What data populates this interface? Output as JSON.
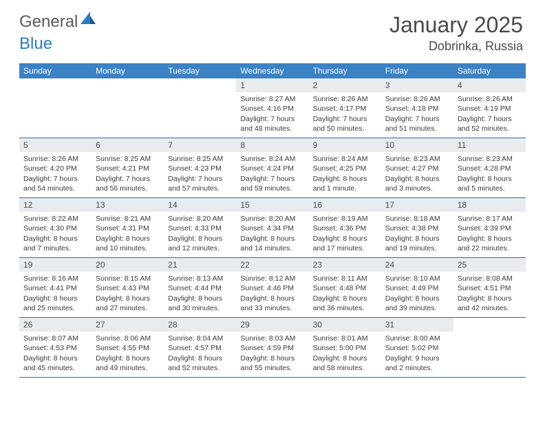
{
  "brand": {
    "text1": "General",
    "text2": "Blue"
  },
  "title": "January 2025",
  "location": "Dobrinka, Russia",
  "colors": {
    "header_bg": "#3b82c4",
    "header_text": "#ffffff",
    "daynum_bg": "#e8ecef",
    "row_border": "#2b6ca8",
    "body_text": "#3a3a3a",
    "brand_gray": "#5a5a5a",
    "brand_blue": "#2b7bbf"
  },
  "day_names": [
    "Sunday",
    "Monday",
    "Tuesday",
    "Wednesday",
    "Thursday",
    "Friday",
    "Saturday"
  ],
  "weeks": [
    [
      {
        "day": "",
        "lines": [
          "",
          "",
          "",
          ""
        ]
      },
      {
        "day": "",
        "lines": [
          "",
          "",
          "",
          ""
        ]
      },
      {
        "day": "",
        "lines": [
          "",
          "",
          "",
          ""
        ]
      },
      {
        "day": "1",
        "lines": [
          "Sunrise: 8:27 AM",
          "Sunset: 4:16 PM",
          "Daylight: 7 hours",
          "and 48 minutes."
        ]
      },
      {
        "day": "2",
        "lines": [
          "Sunrise: 8:26 AM",
          "Sunset: 4:17 PM",
          "Daylight: 7 hours",
          "and 50 minutes."
        ]
      },
      {
        "day": "3",
        "lines": [
          "Sunrise: 8:26 AM",
          "Sunset: 4:18 PM",
          "Daylight: 7 hours",
          "and 51 minutes."
        ]
      },
      {
        "day": "4",
        "lines": [
          "Sunrise: 8:26 AM",
          "Sunset: 4:19 PM",
          "Daylight: 7 hours",
          "and 52 minutes."
        ]
      }
    ],
    [
      {
        "day": "5",
        "lines": [
          "Sunrise: 8:26 AM",
          "Sunset: 4:20 PM",
          "Daylight: 7 hours",
          "and 54 minutes."
        ]
      },
      {
        "day": "6",
        "lines": [
          "Sunrise: 8:25 AM",
          "Sunset: 4:21 PM",
          "Daylight: 7 hours",
          "and 56 minutes."
        ]
      },
      {
        "day": "7",
        "lines": [
          "Sunrise: 8:25 AM",
          "Sunset: 4:23 PM",
          "Daylight: 7 hours",
          "and 57 minutes."
        ]
      },
      {
        "day": "8",
        "lines": [
          "Sunrise: 8:24 AM",
          "Sunset: 4:24 PM",
          "Daylight: 7 hours",
          "and 59 minutes."
        ]
      },
      {
        "day": "9",
        "lines": [
          "Sunrise: 8:24 AM",
          "Sunset: 4:25 PM",
          "Daylight: 8 hours",
          "and 1 minute."
        ]
      },
      {
        "day": "10",
        "lines": [
          "Sunrise: 8:23 AM",
          "Sunset: 4:27 PM",
          "Daylight: 8 hours",
          "and 3 minutes."
        ]
      },
      {
        "day": "11",
        "lines": [
          "Sunrise: 8:23 AM",
          "Sunset: 4:28 PM",
          "Daylight: 8 hours",
          "and 5 minutes."
        ]
      }
    ],
    [
      {
        "day": "12",
        "lines": [
          "Sunrise: 8:22 AM",
          "Sunset: 4:30 PM",
          "Daylight: 8 hours",
          "and 7 minutes."
        ]
      },
      {
        "day": "13",
        "lines": [
          "Sunrise: 8:21 AM",
          "Sunset: 4:31 PM",
          "Daylight: 8 hours",
          "and 10 minutes."
        ]
      },
      {
        "day": "14",
        "lines": [
          "Sunrise: 8:20 AM",
          "Sunset: 4:33 PM",
          "Daylight: 8 hours",
          "and 12 minutes."
        ]
      },
      {
        "day": "15",
        "lines": [
          "Sunrise: 8:20 AM",
          "Sunset: 4:34 PM",
          "Daylight: 8 hours",
          "and 14 minutes."
        ]
      },
      {
        "day": "16",
        "lines": [
          "Sunrise: 8:19 AM",
          "Sunset: 4:36 PM",
          "Daylight: 8 hours",
          "and 17 minutes."
        ]
      },
      {
        "day": "17",
        "lines": [
          "Sunrise: 8:18 AM",
          "Sunset: 4:38 PM",
          "Daylight: 8 hours",
          "and 19 minutes."
        ]
      },
      {
        "day": "18",
        "lines": [
          "Sunrise: 8:17 AM",
          "Sunset: 4:39 PM",
          "Daylight: 8 hours",
          "and 22 minutes."
        ]
      }
    ],
    [
      {
        "day": "19",
        "lines": [
          "Sunrise: 8:16 AM",
          "Sunset: 4:41 PM",
          "Daylight: 8 hours",
          "and 25 minutes."
        ]
      },
      {
        "day": "20",
        "lines": [
          "Sunrise: 8:15 AM",
          "Sunset: 4:43 PM",
          "Daylight: 8 hours",
          "and 27 minutes."
        ]
      },
      {
        "day": "21",
        "lines": [
          "Sunrise: 8:13 AM",
          "Sunset: 4:44 PM",
          "Daylight: 8 hours",
          "and 30 minutes."
        ]
      },
      {
        "day": "22",
        "lines": [
          "Sunrise: 8:12 AM",
          "Sunset: 4:46 PM",
          "Daylight: 8 hours",
          "and 33 minutes."
        ]
      },
      {
        "day": "23",
        "lines": [
          "Sunrise: 8:11 AM",
          "Sunset: 4:48 PM",
          "Daylight: 8 hours",
          "and 36 minutes."
        ]
      },
      {
        "day": "24",
        "lines": [
          "Sunrise: 8:10 AM",
          "Sunset: 4:49 PM",
          "Daylight: 8 hours",
          "and 39 minutes."
        ]
      },
      {
        "day": "25",
        "lines": [
          "Sunrise: 8:08 AM",
          "Sunset: 4:51 PM",
          "Daylight: 8 hours",
          "and 42 minutes."
        ]
      }
    ],
    [
      {
        "day": "26",
        "lines": [
          "Sunrise: 8:07 AM",
          "Sunset: 4:53 PM",
          "Daylight: 8 hours",
          "and 45 minutes."
        ]
      },
      {
        "day": "27",
        "lines": [
          "Sunrise: 8:06 AM",
          "Sunset: 4:55 PM",
          "Daylight: 8 hours",
          "and 49 minutes."
        ]
      },
      {
        "day": "28",
        "lines": [
          "Sunrise: 8:04 AM",
          "Sunset: 4:57 PM",
          "Daylight: 8 hours",
          "and 52 minutes."
        ]
      },
      {
        "day": "29",
        "lines": [
          "Sunrise: 8:03 AM",
          "Sunset: 4:59 PM",
          "Daylight: 8 hours",
          "and 55 minutes."
        ]
      },
      {
        "day": "30",
        "lines": [
          "Sunrise: 8:01 AM",
          "Sunset: 5:00 PM",
          "Daylight: 8 hours",
          "and 58 minutes."
        ]
      },
      {
        "day": "31",
        "lines": [
          "Sunrise: 8:00 AM",
          "Sunset: 5:02 PM",
          "Daylight: 9 hours",
          "and 2 minutes."
        ]
      },
      {
        "day": "",
        "lines": [
          "",
          "",
          "",
          ""
        ]
      }
    ]
  ]
}
